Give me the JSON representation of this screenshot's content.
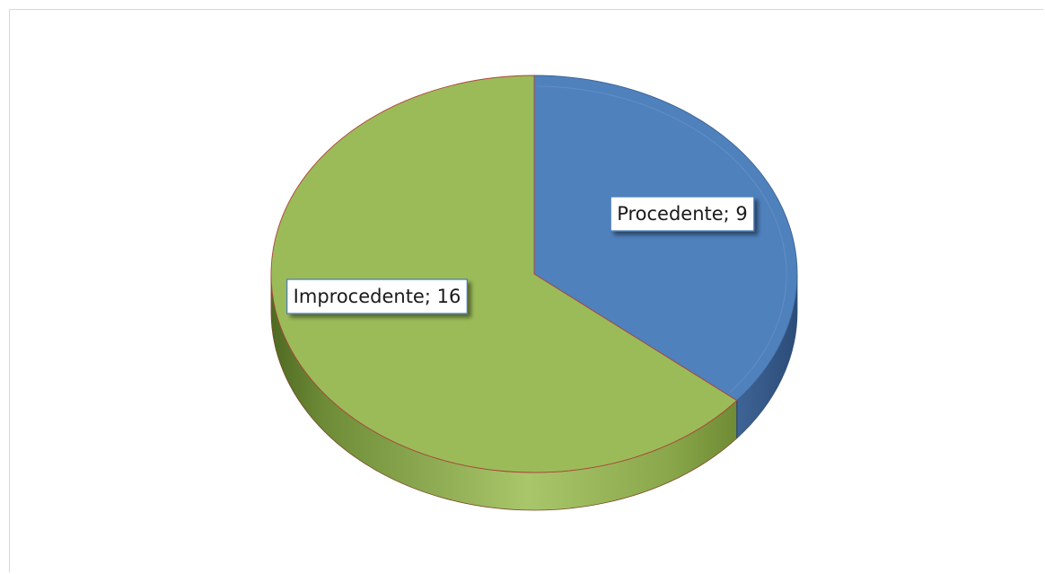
{
  "chart_data": {
    "type": "pie",
    "style": "3d",
    "title": "",
    "slices": [
      {
        "label": "Procedente",
        "value": 9,
        "color": "#4f81bd",
        "data_label": "Procedente; 9"
      },
      {
        "label": "Improcedente",
        "value": 16,
        "color": "#9bbb59",
        "data_label": "Improcedente; 16"
      }
    ],
    "legend": "none"
  }
}
